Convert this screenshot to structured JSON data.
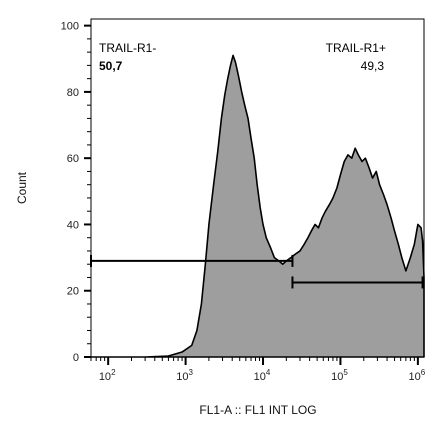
{
  "chart_data": {
    "type": "area",
    "xlabel": "FL1-A :: FL1 INT LOG",
    "ylabel": "Count",
    "x_scale": "log",
    "xlim": [
      60,
      1200000
    ],
    "ylim": [
      0,
      102
    ],
    "x_ticks": [
      {
        "value": 100,
        "base": "10",
        "exp": "2"
      },
      {
        "value": 1000,
        "base": "10",
        "exp": "3"
      },
      {
        "value": 10000,
        "base": "10",
        "exp": "4"
      },
      {
        "value": 100000,
        "base": "10",
        "exp": "5"
      },
      {
        "value": 1000000,
        "base": "10",
        "exp": "6"
      }
    ],
    "y_ticks": [
      0,
      20,
      40,
      60,
      80,
      100
    ],
    "y_tick_labels": [
      "0",
      "20",
      "40",
      "60",
      "80",
      "100"
    ],
    "fill_color": "#9e9e9e",
    "line_color": "#000000",
    "histogram": {
      "x": [
        60,
        300,
        600,
        900,
        1200,
        1400,
        1600,
        1800,
        2000,
        2300,
        2600,
        2900,
        3200,
        3500,
        3800,
        4100,
        4400,
        4800,
        5300,
        5800,
        6400,
        7000,
        7700,
        8400,
        9200,
        10000,
        11000,
        12500,
        14000,
        16000,
        18000,
        20000,
        23000,
        26000,
        30000,
        34000,
        38000,
        42000,
        47000,
        52000,
        58000,
        64000,
        72000,
        80000,
        90000,
        100000,
        112000,
        125000,
        140000,
        155000,
        170000,
        190000,
        210000,
        235000,
        260000,
        290000,
        320000,
        360000,
        400000,
        450000,
        500000,
        560000,
        620000,
        700000,
        800000,
        900000,
        1000000,
        1100000,
        1150000,
        1200000
      ],
      "y": [
        0,
        0,
        0.3,
        1.5,
        3.5,
        8,
        16,
        28,
        40,
        52,
        62,
        72,
        79,
        84,
        88,
        91,
        89,
        85,
        80,
        76,
        72,
        66,
        60,
        52,
        45,
        40,
        36,
        33,
        30,
        29,
        28,
        29,
        30,
        31,
        32,
        34,
        36,
        38,
        40,
        39,
        42,
        44,
        46,
        48,
        51,
        55,
        59,
        61,
        60,
        63,
        61,
        59,
        60,
        57,
        54,
        56,
        52,
        49,
        46,
        42,
        38,
        34,
        30,
        26,
        30,
        34,
        40,
        39,
        35,
        24
      ]
    },
    "gates": [
      {
        "name": "TRAIL-R1-",
        "value": "50,7",
        "x_start": 60,
        "x_end": 24000,
        "y": 29
      },
      {
        "name": "TRAIL-R1+",
        "value": "49,3",
        "x_start": 24000,
        "x_end": 1150000,
        "y": 22.5
      }
    ]
  }
}
